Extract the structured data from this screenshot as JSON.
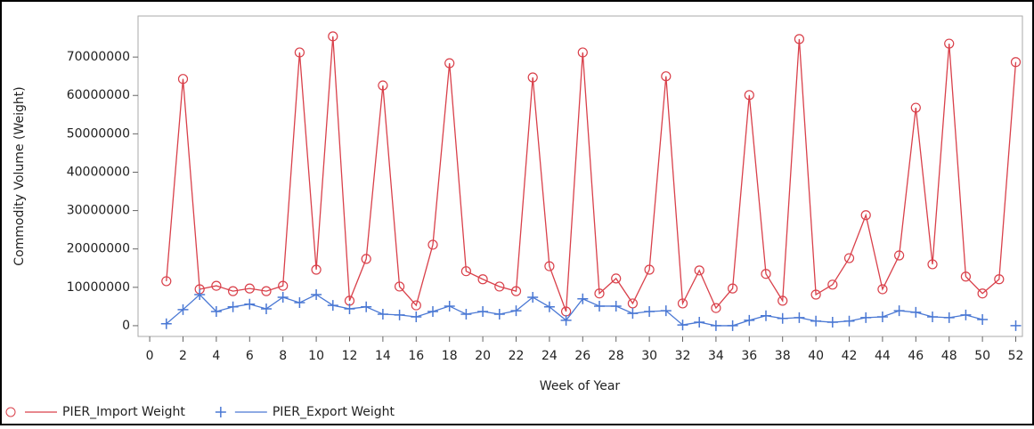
{
  "chart_data": {
    "type": "line",
    "x_label": "Week of Year",
    "y_label": "Commodity Volume (Weight)",
    "x": [
      1,
      2,
      3,
      4,
      5,
      6,
      7,
      8,
      9,
      10,
      11,
      12,
      13,
      14,
      15,
      16,
      17,
      18,
      19,
      20,
      21,
      22,
      23,
      24,
      25,
      26,
      27,
      28,
      29,
      30,
      31,
      32,
      33,
      34,
      35,
      36,
      37,
      38,
      39,
      40,
      41,
      42,
      43,
      44,
      45,
      46,
      47,
      48,
      49,
      50,
      51,
      52
    ],
    "series": [
      {
        "name": "PIER_Import Weight",
        "color": "#d9404a",
        "marker": "circle",
        "values": [
          11600000,
          64300000,
          9500000,
          10400000,
          9000000,
          9700000,
          9000000,
          10400000,
          71200000,
          14600000,
          75400000,
          6500000,
          17400000,
          62600000,
          10200000,
          5300000,
          21100000,
          68400000,
          14200000,
          12100000,
          10200000,
          9000000,
          64700000,
          15500000,
          3700000,
          71200000,
          8400000,
          12300000,
          5800000,
          14600000,
          65000000,
          5800000,
          14400000,
          4600000,
          9700000,
          60100000,
          13500000,
          6500000,
          74700000,
          8100000,
          10700000,
          17600000,
          28800000,
          9500000,
          18300000,
          56800000,
          16000000,
          73500000,
          12800000,
          8400000,
          12100000,
          68700000
        ]
      },
      {
        "name": "PIER_Export Weight",
        "color": "#4a78d4",
        "marker": "plus",
        "values": [
          500000,
          4200000,
          8100000,
          3700000,
          4900000,
          5600000,
          4400000,
          7400000,
          6000000,
          8100000,
          5300000,
          4400000,
          4900000,
          3000000,
          2800000,
          2300000,
          3700000,
          5100000,
          3000000,
          3700000,
          3000000,
          3900000,
          7400000,
          4900000,
          1400000,
          7000000,
          5100000,
          5100000,
          3200000,
          3700000,
          3900000,
          200000,
          900000,
          0,
          0,
          1400000,
          2600000,
          1900000,
          2100000,
          1200000,
          900000,
          1200000,
          2100000,
          2300000,
          3900000,
          3500000,
          2300000,
          2100000,
          2800000,
          1600000,
          null,
          0
        ]
      }
    ],
    "xlim": [
      -0.7,
      52.4
    ],
    "ylim": [
      -2800000,
      80700000
    ],
    "xticks": [
      0,
      2,
      4,
      6,
      8,
      10,
      12,
      14,
      16,
      18,
      20,
      22,
      24,
      26,
      28,
      30,
      32,
      34,
      36,
      38,
      40,
      42,
      44,
      46,
      48,
      50,
      52
    ],
    "yticks": [
      0,
      10000000,
      20000000,
      30000000,
      40000000,
      50000000,
      60000000,
      70000000
    ]
  }
}
